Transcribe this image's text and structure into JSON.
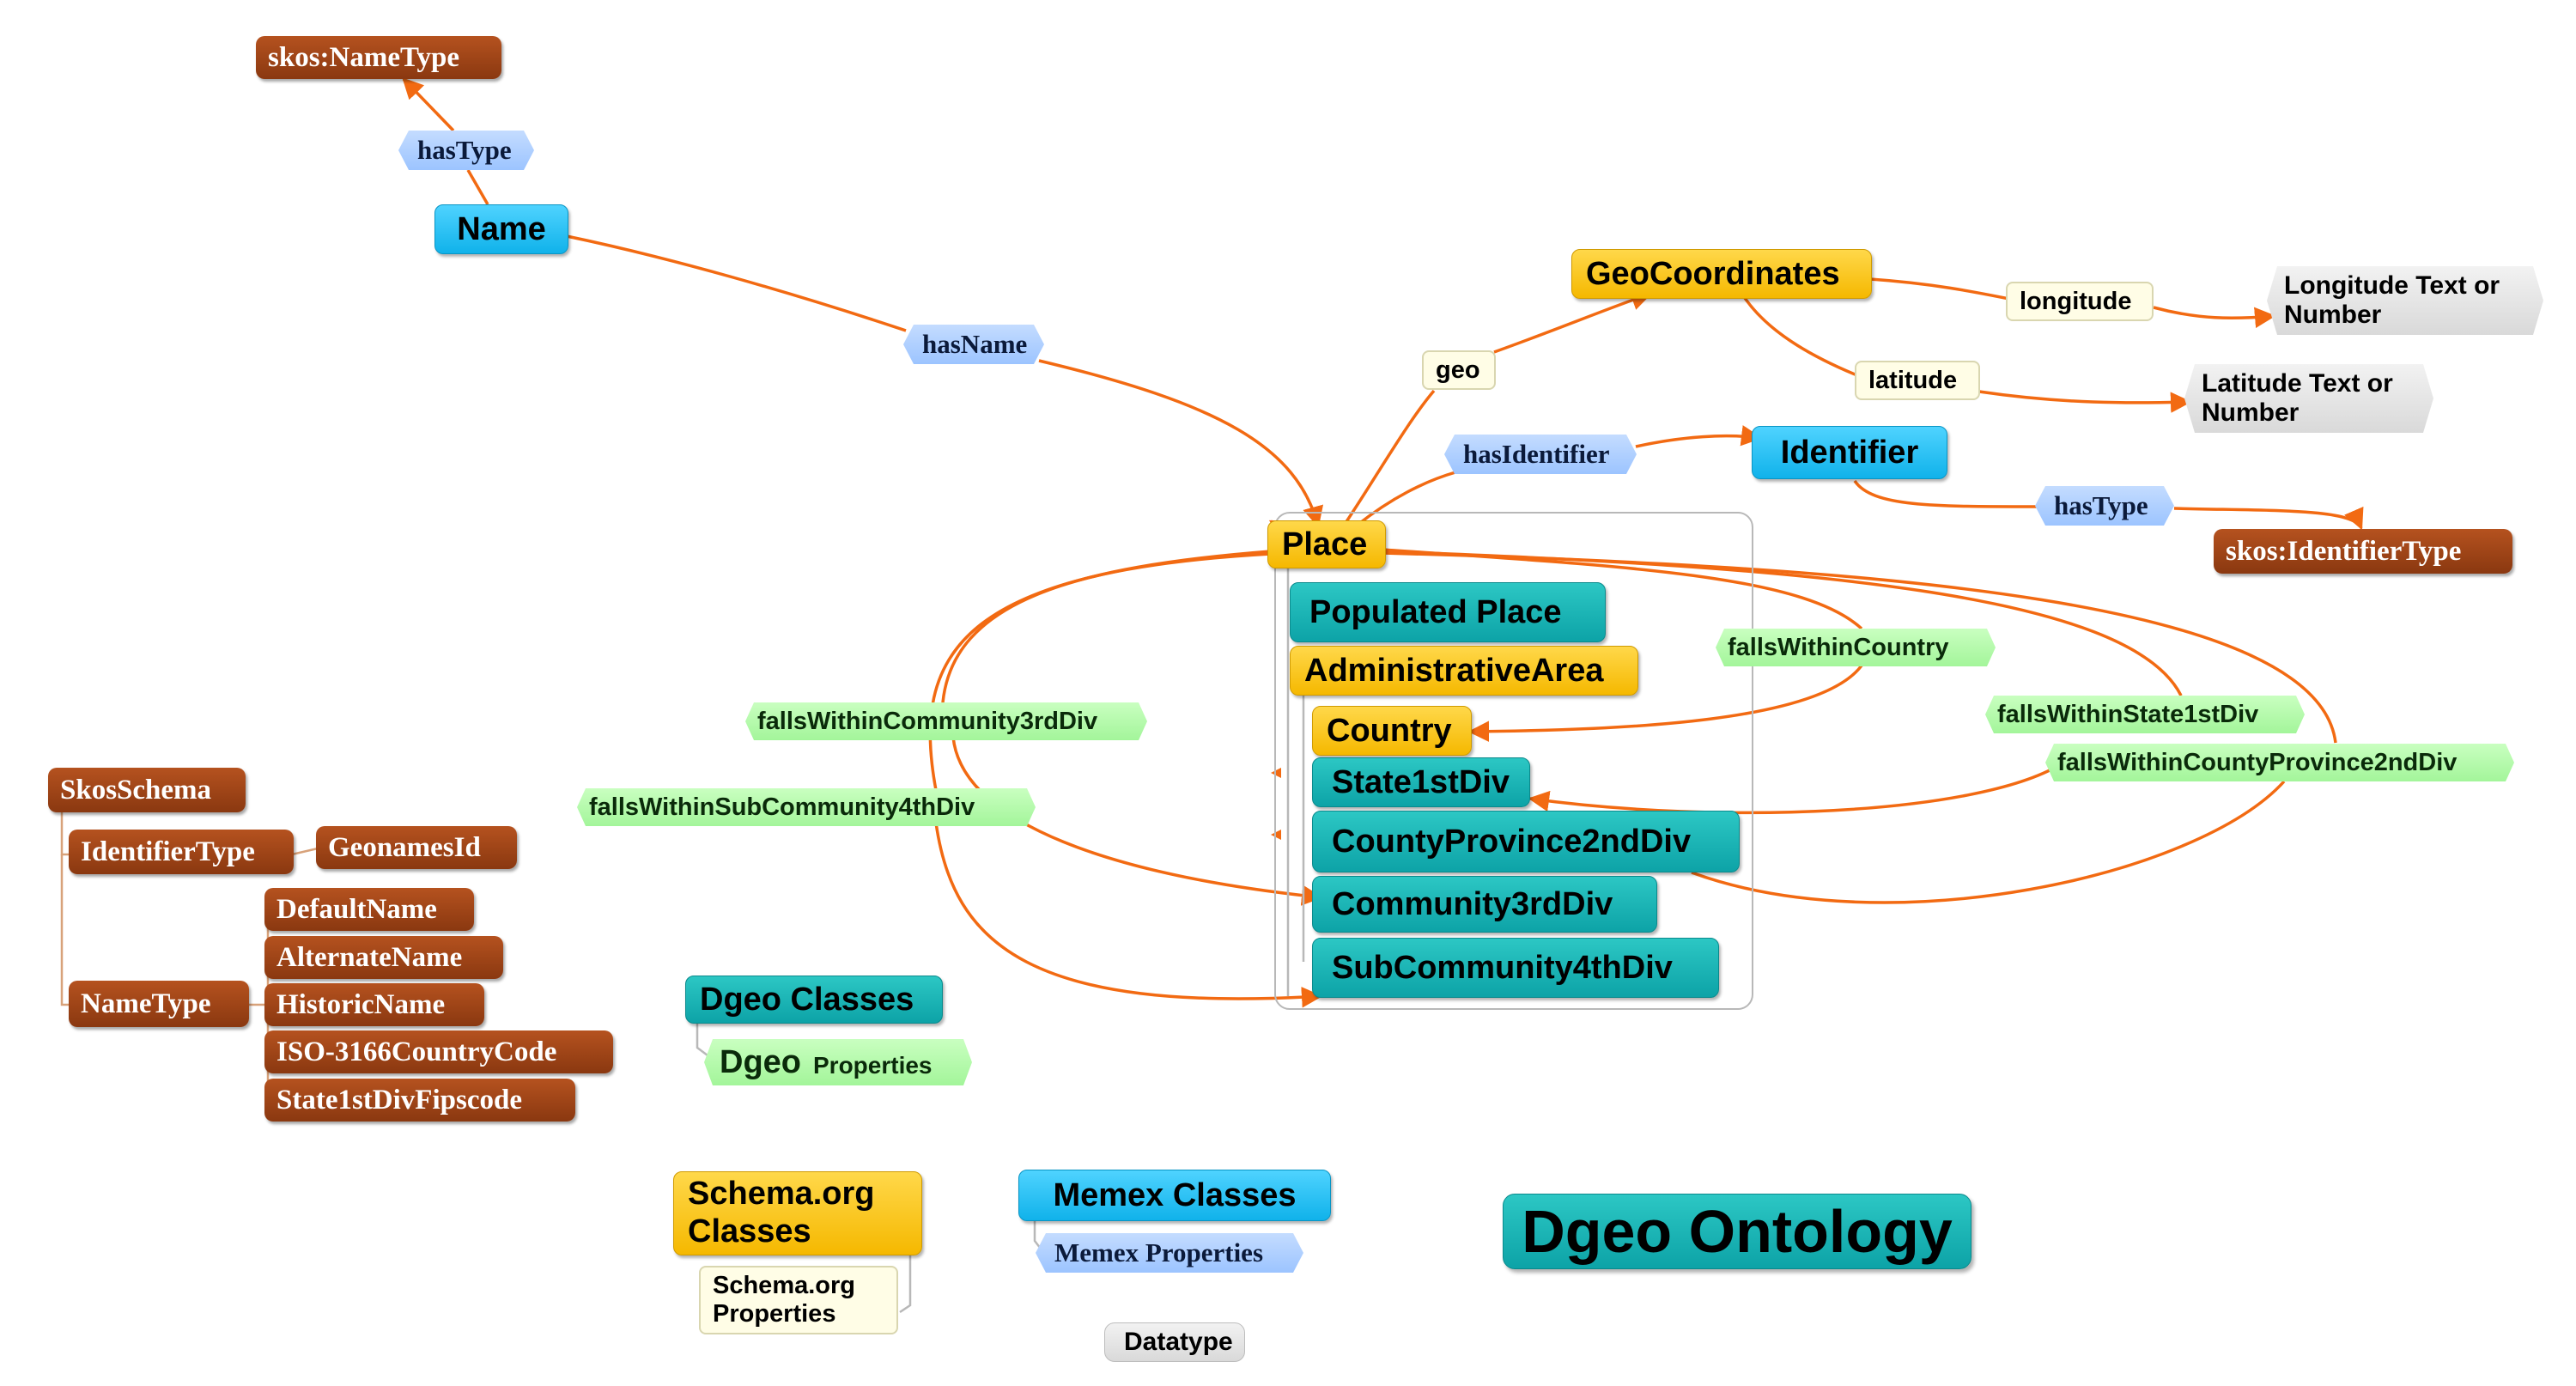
{
  "title": "Dgeo Ontology",
  "nodes": {
    "skos_nametype": "skos:NameType",
    "hastype_name": "hasType",
    "name": "Name",
    "hasname": "hasName",
    "geocoordinates": "GeoCoordinates",
    "longitude": "longitude",
    "longitude_text": [
      "Longitude Text or",
      "Number"
    ],
    "geo": "geo",
    "latitude": "latitude",
    "latitude_text": [
      "Latitude Text or",
      "Number"
    ],
    "hasidentifier": "hasIdentifier",
    "identifier": "Identifier",
    "hastype_identifier": "hasType",
    "skos_identifiertype": "skos:IdentifierType",
    "place": "Place",
    "populated_place": "Populated Place",
    "administrative_area": "AdministrativeArea",
    "country": "Country",
    "state1stdiv": "State1stDiv",
    "countyprovince2nddiv": "CountyProvince2ndDiv",
    "community3rddiv": "Community3rdDiv",
    "subcommunity4thdiv": "SubCommunity4thDiv",
    "fallswithincountry": "fallsWithinCountry",
    "fallswithinstate1stdiv": "fallsWithinState1stDiv",
    "fallswithincountyprovince2nddiv": "fallsWithinCountyProvince2ndDiv",
    "fallswithincommunity3rddiv": "fallsWithinCommunity3rdDiv",
    "fallswithinsubcommunity4thdiv": "fallsWithinSubCommunity4thDiv"
  },
  "skos_schema": {
    "root": "SkosSchema",
    "identifier_type": "IdentifierType",
    "geonames_id": "GeonamesId",
    "name_type": "NameType",
    "name_values": [
      "DefaultName",
      "AlternateName",
      "HistoricName",
      "ISO-3166CountryCode",
      "State1stDivFipscode"
    ]
  },
  "legend": {
    "dgeo_classes": "Dgeo Classes",
    "dgeo_properties_big": "Dgeo",
    "dgeo_properties_small": "Properties",
    "schema_classes": [
      "Schema.org",
      "Classes"
    ],
    "schema_properties": [
      "Schema.org",
      "Properties"
    ],
    "memex_classes": "Memex Classes",
    "memex_properties": "Memex Properties",
    "datatype": "Datatype"
  },
  "colors": {
    "edge": "#f26a12",
    "connector": "#d8a27a",
    "brown": "#9c4317",
    "cyan": "#1bbbf0",
    "gold": "#ffc400",
    "teal": "#14b3b3",
    "blue_property": "#a8cbff",
    "green_property": "#b3fba8",
    "cream": "#fffde6",
    "grey": "#e0e0e0"
  }
}
